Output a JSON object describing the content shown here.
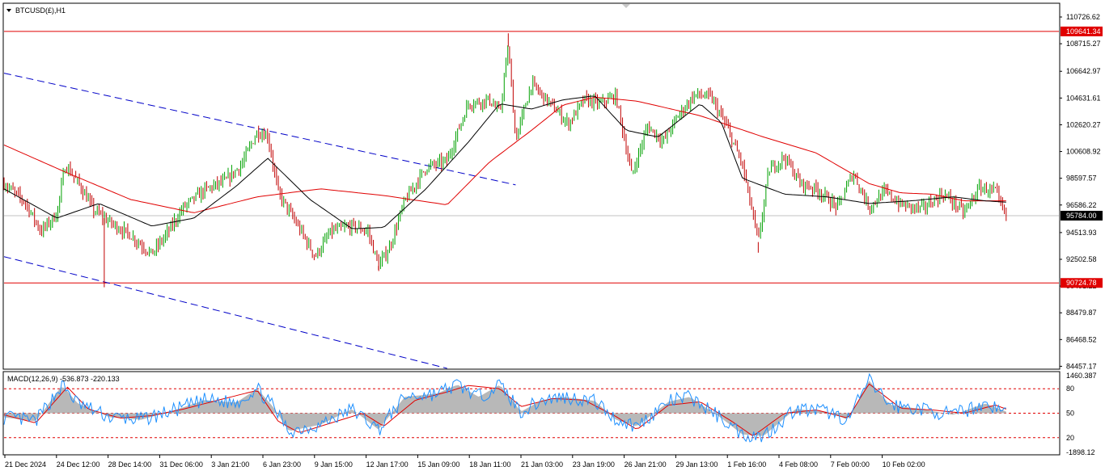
{
  "window": {
    "symbol_title": "BTCUSD(£),H1",
    "macd_title": "MACD(12,26,9) -536.873 -220.133"
  },
  "price_axis": {
    "ticks": [
      "110726.62",
      "108715.27",
      "106642.97",
      "104631.61",
      "102620.27",
      "100608.92",
      "98597.57",
      "96586.22",
      "94513.93",
      "92502.58",
      "90491.22",
      "88479.87",
      "86468.52",
      "84457.17"
    ],
    "tick_values": [
      110726.62,
      108715.27,
      106642.97,
      104631.61,
      102620.27,
      100608.92,
      98597.57,
      96586.22,
      94513.93,
      92502.58,
      90491.22,
      88479.87,
      86468.52,
      84457.17
    ],
    "range": [
      84300,
      111700
    ]
  },
  "macd_axis": {
    "ticks": [
      "1460.387",
      "80",
      "50",
      "20",
      "-1898.12"
    ],
    "range": [
      -1898.12,
      1460.387
    ]
  },
  "time_axis": {
    "ticks": [
      "21 Dec 2024",
      "24 Dec 12:00",
      "28 Dec 14:00",
      "31 Dec 06:00",
      "3 Jan 21:00",
      "6 Jan 23:00",
      "9 Jan 15:00",
      "12 Jan 17:00",
      "15 Jan 09:00",
      "18 Jan 11:00",
      "21 Jan 03:00",
      "23 Jan 19:00",
      "26 Jan 21:00",
      "29 Jan 13:00",
      "1 Feb 16:00",
      "4 Feb 08:00",
      "7 Feb 00:00",
      "10 Feb 02:00"
    ]
  },
  "chart_data": {
    "type": "line",
    "symbol": "BTCUSD(£)",
    "timeframe": "H1",
    "ylim": [
      84300,
      111700
    ],
    "horizontal_levels": [
      {
        "label": "109641.34",
        "value": 109641.34,
        "color": "#e00000"
      },
      {
        "label": "90724.78",
        "value": 90724.78,
        "color": "#e00000"
      }
    ],
    "current_price": {
      "label": "95784.00",
      "value": 95784.0
    },
    "price_path": [
      {
        "t": 0.0,
        "v": 98200
      },
      {
        "t": 0.02,
        "v": 96800
      },
      {
        "t": 0.035,
        "v": 94600
      },
      {
        "t": 0.05,
        "v": 95900
      },
      {
        "t": 0.058,
        "v": 99600
      },
      {
        "t": 0.07,
        "v": 98300
      },
      {
        "t": 0.085,
        "v": 96200
      },
      {
        "t": 0.1,
        "v": 95300
      },
      {
        "t": 0.12,
        "v": 94300
      },
      {
        "t": 0.14,
        "v": 92900
      },
      {
        "t": 0.155,
        "v": 94500
      },
      {
        "t": 0.17,
        "v": 96400
      },
      {
        "t": 0.19,
        "v": 97700
      },
      {
        "t": 0.21,
        "v": 98400
      },
      {
        "t": 0.225,
        "v": 99600
      },
      {
        "t": 0.24,
        "v": 102100
      },
      {
        "t": 0.25,
        "v": 101800
      },
      {
        "t": 0.26,
        "v": 97500
      },
      {
        "t": 0.28,
        "v": 94800
      },
      {
        "t": 0.295,
        "v": 92700
      },
      {
        "t": 0.31,
        "v": 94600
      },
      {
        "t": 0.33,
        "v": 95000
      },
      {
        "t": 0.345,
        "v": 94600
      },
      {
        "t": 0.355,
        "v": 92000
      },
      {
        "t": 0.365,
        "v": 93300
      },
      {
        "t": 0.38,
        "v": 96900
      },
      {
        "t": 0.4,
        "v": 99400
      },
      {
        "t": 0.42,
        "v": 99900
      },
      {
        "t": 0.44,
        "v": 104200
      },
      {
        "t": 0.46,
        "v": 104500
      },
      {
        "t": 0.47,
        "v": 103500
      },
      {
        "t": 0.478,
        "v": 108500
      },
      {
        "t": 0.485,
        "v": 101500
      },
      {
        "t": 0.5,
        "v": 105700
      },
      {
        "t": 0.52,
        "v": 104000
      },
      {
        "t": 0.535,
        "v": 102700
      },
      {
        "t": 0.55,
        "v": 104500
      },
      {
        "t": 0.565,
        "v": 104200
      },
      {
        "t": 0.58,
        "v": 104800
      },
      {
        "t": 0.595,
        "v": 98800
      },
      {
        "t": 0.61,
        "v": 102500
      },
      {
        "t": 0.625,
        "v": 101400
      },
      {
        "t": 0.64,
        "v": 103400
      },
      {
        "t": 0.655,
        "v": 104900
      },
      {
        "t": 0.67,
        "v": 104700
      },
      {
        "t": 0.685,
        "v": 102500
      },
      {
        "t": 0.7,
        "v": 99600
      },
      {
        "t": 0.715,
        "v": 93800
      },
      {
        "t": 0.725,
        "v": 99200
      },
      {
        "t": 0.74,
        "v": 100200
      },
      {
        "t": 0.755,
        "v": 98200
      },
      {
        "t": 0.77,
        "v": 97800
      },
      {
        "t": 0.79,
        "v": 96400
      },
      {
        "t": 0.805,
        "v": 99000
      },
      {
        "t": 0.82,
        "v": 96400
      },
      {
        "t": 0.835,
        "v": 97600
      },
      {
        "t": 0.85,
        "v": 96600
      },
      {
        "t": 0.87,
        "v": 96300
      },
      {
        "t": 0.89,
        "v": 97400
      },
      {
        "t": 0.9,
        "v": 96800
      },
      {
        "t": 0.91,
        "v": 96000
      },
      {
        "t": 0.925,
        "v": 97900
      },
      {
        "t": 0.94,
        "v": 97600
      },
      {
        "t": 0.945,
        "v": 96500
      },
      {
        "t": 0.95,
        "v": 95700
      }
    ],
    "ma_slow_path": [
      {
        "t": 0.0,
        "v": 101100
      },
      {
        "t": 0.06,
        "v": 99000
      },
      {
        "t": 0.12,
        "v": 97000
      },
      {
        "t": 0.18,
        "v": 96000
      },
      {
        "t": 0.24,
        "v": 97200
      },
      {
        "t": 0.3,
        "v": 97800
      },
      {
        "t": 0.36,
        "v": 97300
      },
      {
        "t": 0.42,
        "v": 96600
      },
      {
        "t": 0.46,
        "v": 99800
      },
      {
        "t": 0.5,
        "v": 102200
      },
      {
        "t": 0.53,
        "v": 104100
      },
      {
        "t": 0.56,
        "v": 104700
      },
      {
        "t": 0.6,
        "v": 104400
      },
      {
        "t": 0.66,
        "v": 103300
      },
      {
        "t": 0.72,
        "v": 101700
      },
      {
        "t": 0.77,
        "v": 100500
      },
      {
        "t": 0.82,
        "v": 98200
      },
      {
        "t": 0.85,
        "v": 97500
      },
      {
        "t": 0.88,
        "v": 97400
      },
      {
        "t": 0.91,
        "v": 96900
      },
      {
        "t": 0.95,
        "v": 96900
      }
    ],
    "ma_fast_path": [
      {
        "t": 0.0,
        "v": 97800
      },
      {
        "t": 0.05,
        "v": 95600
      },
      {
        "t": 0.09,
        "v": 96700
      },
      {
        "t": 0.14,
        "v": 95000
      },
      {
        "t": 0.18,
        "v": 95600
      },
      {
        "t": 0.22,
        "v": 98000
      },
      {
        "t": 0.25,
        "v": 100100
      },
      {
        "t": 0.29,
        "v": 97000
      },
      {
        "t": 0.33,
        "v": 94800
      },
      {
        "t": 0.36,
        "v": 94900
      },
      {
        "t": 0.4,
        "v": 97800
      },
      {
        "t": 0.44,
        "v": 101300
      },
      {
        "t": 0.47,
        "v": 104200
      },
      {
        "t": 0.5,
        "v": 103800
      },
      {
        "t": 0.53,
        "v": 104500
      },
      {
        "t": 0.56,
        "v": 104800
      },
      {
        "t": 0.59,
        "v": 102200
      },
      {
        "t": 0.62,
        "v": 101700
      },
      {
        "t": 0.66,
        "v": 104200
      },
      {
        "t": 0.68,
        "v": 102800
      },
      {
        "t": 0.7,
        "v": 98600
      },
      {
        "t": 0.74,
        "v": 97400
      },
      {
        "t": 0.78,
        "v": 97200
      },
      {
        "t": 0.82,
        "v": 96700
      },
      {
        "t": 0.86,
        "v": 96900
      },
      {
        "t": 0.9,
        "v": 97200
      },
      {
        "t": 0.93,
        "v": 96900
      },
      {
        "t": 0.95,
        "v": 96800
      }
    ],
    "channel_upper": [
      {
        "t": 0.0,
        "v": 106500
      },
      {
        "t": 0.485,
        "v": 98100
      }
    ],
    "channel_lower": [
      {
        "t": 0.0,
        "v": 92700
      },
      {
        "t": 0.42,
        "v": 84300
      }
    ],
    "macd_levels": [
      {
        "label": "80",
        "value": 80
      },
      {
        "label": "50",
        "value": 50
      },
      {
        "label": "20",
        "value": 20
      }
    ],
    "macd_hist": [
      {
        "t": 0.0,
        "v": 45
      },
      {
        "t": 0.03,
        "v": 40
      },
      {
        "t": 0.055,
        "v": 84
      },
      {
        "t": 0.07,
        "v": 62
      },
      {
        "t": 0.1,
        "v": 45
      },
      {
        "t": 0.13,
        "v": 42
      },
      {
        "t": 0.16,
        "v": 53
      },
      {
        "t": 0.19,
        "v": 66
      },
      {
        "t": 0.22,
        "v": 63
      },
      {
        "t": 0.24,
        "v": 80
      },
      {
        "t": 0.255,
        "v": 58
      },
      {
        "t": 0.27,
        "v": 28
      },
      {
        "t": 0.3,
        "v": 36
      },
      {
        "t": 0.33,
        "v": 55
      },
      {
        "t": 0.355,
        "v": 30
      },
      {
        "t": 0.38,
        "v": 70
      },
      {
        "t": 0.41,
        "v": 74
      },
      {
        "t": 0.43,
        "v": 85
      },
      {
        "t": 0.45,
        "v": 70
      },
      {
        "t": 0.47,
        "v": 85
      },
      {
        "t": 0.49,
        "v": 52
      },
      {
        "t": 0.51,
        "v": 66
      },
      {
        "t": 0.53,
        "v": 70
      },
      {
        "t": 0.56,
        "v": 65
      },
      {
        "t": 0.58,
        "v": 42
      },
      {
        "t": 0.6,
        "v": 34
      },
      {
        "t": 0.63,
        "v": 64
      },
      {
        "t": 0.65,
        "v": 70
      },
      {
        "t": 0.68,
        "v": 44
      },
      {
        "t": 0.7,
        "v": 24
      },
      {
        "t": 0.72,
        "v": 22
      },
      {
        "t": 0.75,
        "v": 55
      },
      {
        "t": 0.78,
        "v": 52
      },
      {
        "t": 0.8,
        "v": 42
      },
      {
        "t": 0.82,
        "v": 90
      },
      {
        "t": 0.84,
        "v": 60
      },
      {
        "t": 0.87,
        "v": 55
      },
      {
        "t": 0.9,
        "v": 48
      },
      {
        "t": 0.93,
        "v": 62
      },
      {
        "t": 0.95,
        "v": 52
      }
    ],
    "macd_signal": [
      {
        "t": 0.0,
        "v": 48
      },
      {
        "t": 0.03,
        "v": 38
      },
      {
        "t": 0.06,
        "v": 82
      },
      {
        "t": 0.08,
        "v": 55
      },
      {
        "t": 0.11,
        "v": 44
      },
      {
        "t": 0.14,
        "v": 47
      },
      {
        "t": 0.17,
        "v": 55
      },
      {
        "t": 0.2,
        "v": 65
      },
      {
        "t": 0.24,
        "v": 78
      },
      {
        "t": 0.26,
        "v": 40
      },
      {
        "t": 0.28,
        "v": 26
      },
      {
        "t": 0.31,
        "v": 38
      },
      {
        "t": 0.34,
        "v": 50
      },
      {
        "t": 0.36,
        "v": 34
      },
      {
        "t": 0.39,
        "v": 66
      },
      {
        "t": 0.42,
        "v": 76
      },
      {
        "t": 0.44,
        "v": 84
      },
      {
        "t": 0.47,
        "v": 80
      },
      {
        "t": 0.49,
        "v": 58
      },
      {
        "t": 0.52,
        "v": 68
      },
      {
        "t": 0.55,
        "v": 66
      },
      {
        "t": 0.58,
        "v": 46
      },
      {
        "t": 0.6,
        "v": 30
      },
      {
        "t": 0.63,
        "v": 60
      },
      {
        "t": 0.66,
        "v": 64
      },
      {
        "t": 0.69,
        "v": 40
      },
      {
        "t": 0.71,
        "v": 22
      },
      {
        "t": 0.74,
        "v": 50
      },
      {
        "t": 0.77,
        "v": 54
      },
      {
        "t": 0.8,
        "v": 44
      },
      {
        "t": 0.82,
        "v": 86
      },
      {
        "t": 0.85,
        "v": 56
      },
      {
        "t": 0.88,
        "v": 54
      },
      {
        "t": 0.91,
        "v": 50
      },
      {
        "t": 0.94,
        "v": 60
      },
      {
        "t": 0.95,
        "v": 55
      }
    ]
  }
}
